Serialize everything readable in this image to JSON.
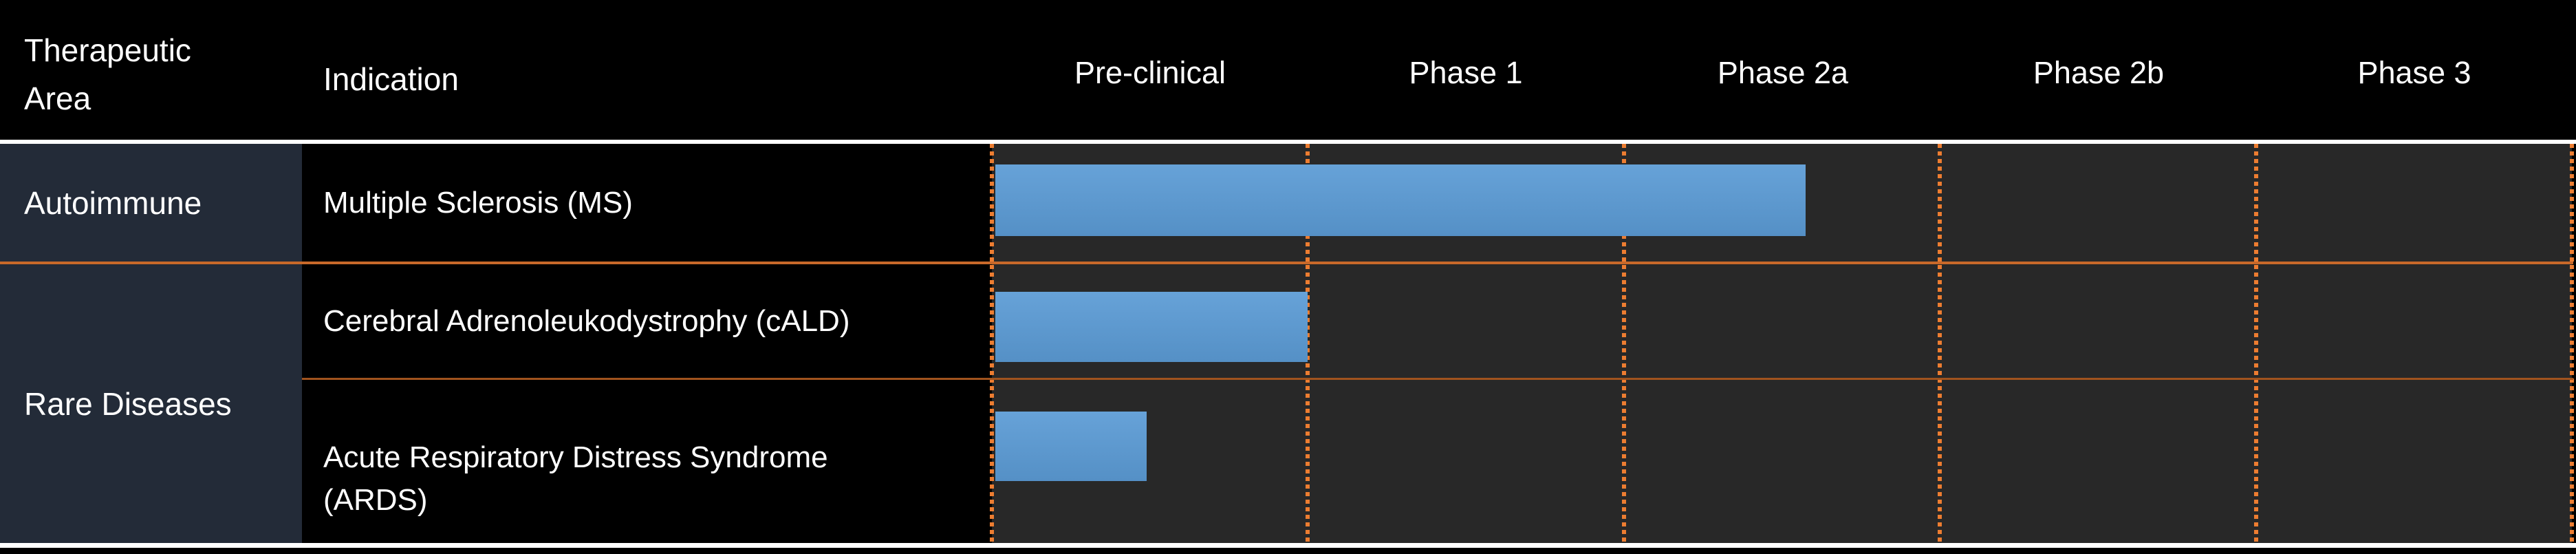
{
  "header": {
    "therapeutic_area": "Therapeutic\nArea",
    "indication": "Indication"
  },
  "groups": [
    {
      "label": "Autoimmune"
    },
    {
      "label": "Rare Diseases"
    }
  ],
  "colors": {
    "page_bg": "#000000",
    "chart_bg": "#282828",
    "left_column_bg": "#232B38",
    "bar": "#5B9BD5",
    "gridline": "#ED7D31",
    "row_separator_1": "#C8692A",
    "row_separator_2": "#A1531E",
    "divider": "#FFFFFF",
    "text": "#FFFFFF"
  },
  "chart_data": {
    "type": "bar",
    "orientation": "horizontal",
    "title": "",
    "x_categories": [
      "Pre-clinical",
      "Phase 1",
      "Phase 2a",
      "Phase 2b",
      "Phase 3"
    ],
    "axis_range": [
      0,
      5
    ],
    "grid": "dashed vertical orange lines at each phase boundary",
    "rows": [
      {
        "therapeutic_area": "Autoimmune",
        "indication": "Multiple Sclerosis (MS)",
        "progress_phases": 2.57,
        "furthest_stage": "Phase 2a"
      },
      {
        "therapeutic_area": "Rare Diseases",
        "indication": "Cerebral Adrenoleukodystrophy (cALD)",
        "progress_phases": 0.99,
        "furthest_stage": "Pre-clinical"
      },
      {
        "therapeutic_area": "Rare Diseases",
        "indication": "Acute Respiratory Distress Syndrome\n(ARDS)",
        "progress_phases": 0.48,
        "furthest_stage": "Pre-clinical"
      }
    ]
  }
}
